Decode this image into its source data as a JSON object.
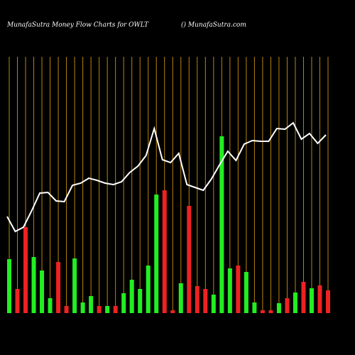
{
  "chart_data": {
    "type": "bar",
    "title": "MunafaSutra  Money Flow  Charts for OWLT",
    "subtitle": "() MunafaSutra.com",
    "background": "#000000",
    "gridline_color": "#b8860b",
    "bars": {
      "values": [
        76,
        34,
        121,
        79,
        60,
        21,
        72,
        10,
        77,
        15,
        24,
        10,
        10,
        10,
        28,
        47,
        34,
        67,
        167,
        173,
        4,
        42,
        151,
        38,
        34,
        26,
        249,
        63,
        67,
        58,
        15,
        4,
        4,
        14,
        21,
        29,
        44,
        35,
        39,
        32
      ],
      "colors": [
        "#22ee22",
        "#ee2222",
        "#ee2222",
        "#22ee22",
        "#22ee22",
        "#22ee22",
        "#ee2222",
        "#ee2222",
        "#22ee22",
        "#22ee22",
        "#22ee22",
        "#ee2222",
        "#22ee22",
        "#ee2222",
        "#22ee22",
        "#22ee22",
        "#22ee22",
        "#22ee22",
        "#22ee22",
        "#ee2222",
        "#ee2222",
        "#22ee22",
        "#ee2222",
        "#ee2222",
        "#ee2222",
        "#22ee22",
        "#22ee22",
        "#22ee22",
        "#ee2222",
        "#22ee22",
        "#22ee22",
        "#ee2222",
        "#ee2222",
        "#22ee22",
        "#ee2222",
        "#22ee22",
        "#ee2222",
        "#22ee22",
        "#ee2222",
        "#ee2222"
      ]
    },
    "line": {
      "color": "#ffffff",
      "values": [
        136,
        115,
        121,
        144,
        169,
        170,
        158,
        157,
        180,
        183,
        190,
        187,
        183,
        181,
        185,
        198,
        207,
        222,
        260,
        216,
        212,
        225,
        181,
        177,
        173,
        189,
        209,
        228,
        215,
        238,
        243,
        242,
        242,
        260,
        259,
        268,
        245,
        253,
        239,
        251
      ]
    },
    "ylim": [
      0,
      361
    ]
  }
}
